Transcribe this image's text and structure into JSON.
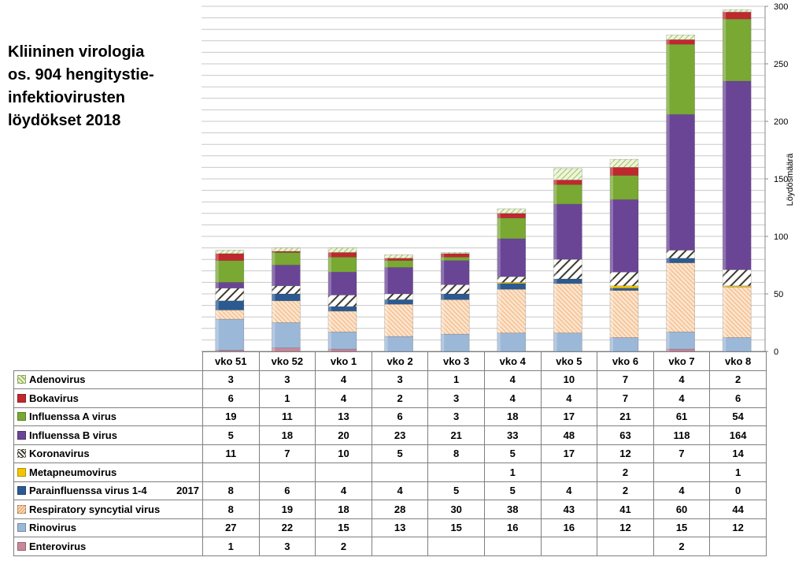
{
  "chart_data": {
    "type": "bar",
    "stacked": true,
    "title": "Kliininen virologia\nos. 904 hengitystie-\ninfektiovirusten\nlöydökset 2018",
    "ylabel": "Löydösmäärä",
    "ylim": [
      0,
      300
    ],
    "yticks": [
      0,
      50,
      100,
      150,
      200,
      250,
      300
    ],
    "grid": true,
    "categories": [
      "vko 51",
      "vko 52",
      "vko 1",
      "vko 2",
      "vko 3",
      "vko 4",
      "vko 5",
      "vko 6",
      "vko 7",
      "vko 8"
    ],
    "series": [
      {
        "name": "Adenovirus",
        "values": [
          3,
          3,
          4,
          3,
          1,
          4,
          10,
          7,
          4,
          2
        ]
      },
      {
        "name": "Bokavirus",
        "values": [
          6,
          1,
          4,
          2,
          3,
          4,
          4,
          7,
          4,
          6
        ]
      },
      {
        "name": "Influenssa A virus",
        "values": [
          19,
          11,
          13,
          6,
          3,
          18,
          17,
          21,
          61,
          54
        ]
      },
      {
        "name": "Influenssa B virus",
        "values": [
          5,
          18,
          20,
          23,
          21,
          33,
          48,
          63,
          118,
          164
        ]
      },
      {
        "name": "Koronavirus",
        "values": [
          11,
          7,
          10,
          5,
          8,
          5,
          17,
          12,
          7,
          14
        ]
      },
      {
        "name": "Metapneumovirus",
        "values": [
          null,
          null,
          null,
          null,
          null,
          1,
          null,
          2,
          null,
          1
        ]
      },
      {
        "name": "Parainfluenssa virus 1-4",
        "values": [
          8,
          6,
          4,
          4,
          5,
          5,
          4,
          2,
          4,
          0
        ]
      },
      {
        "name": "Respiratory syncytial virus",
        "values": [
          8,
          19,
          18,
          28,
          30,
          38,
          43,
          41,
          60,
          44
        ]
      },
      {
        "name": "Rinovirus",
        "values": [
          27,
          22,
          15,
          13,
          15,
          16,
          16,
          12,
          15,
          12
        ]
      },
      {
        "name": "Enterovirus",
        "values": [
          1,
          3,
          2,
          null,
          null,
          null,
          null,
          null,
          2,
          null
        ]
      }
    ],
    "series_note": {
      "series": "Parainfluenssa virus 1-4",
      "text": "2017"
    },
    "colors": {
      "Adenovirus": "#c8dc9a",
      "Bokavirus": "#c0282d",
      "Influenssa A virus": "#79a833",
      "Influenssa B virus": "#6a4596",
      "Koronavirus": "#3d3a2c",
      "Metapneumovirus": "#f2c500",
      "Parainfluenssa virus 1-4": "#2b5a92",
      "Respiratory syncytial virus": "#f0a868",
      "Rinovirus": "#9cb8d8",
      "Enterovirus": "#c9879a"
    }
  }
}
